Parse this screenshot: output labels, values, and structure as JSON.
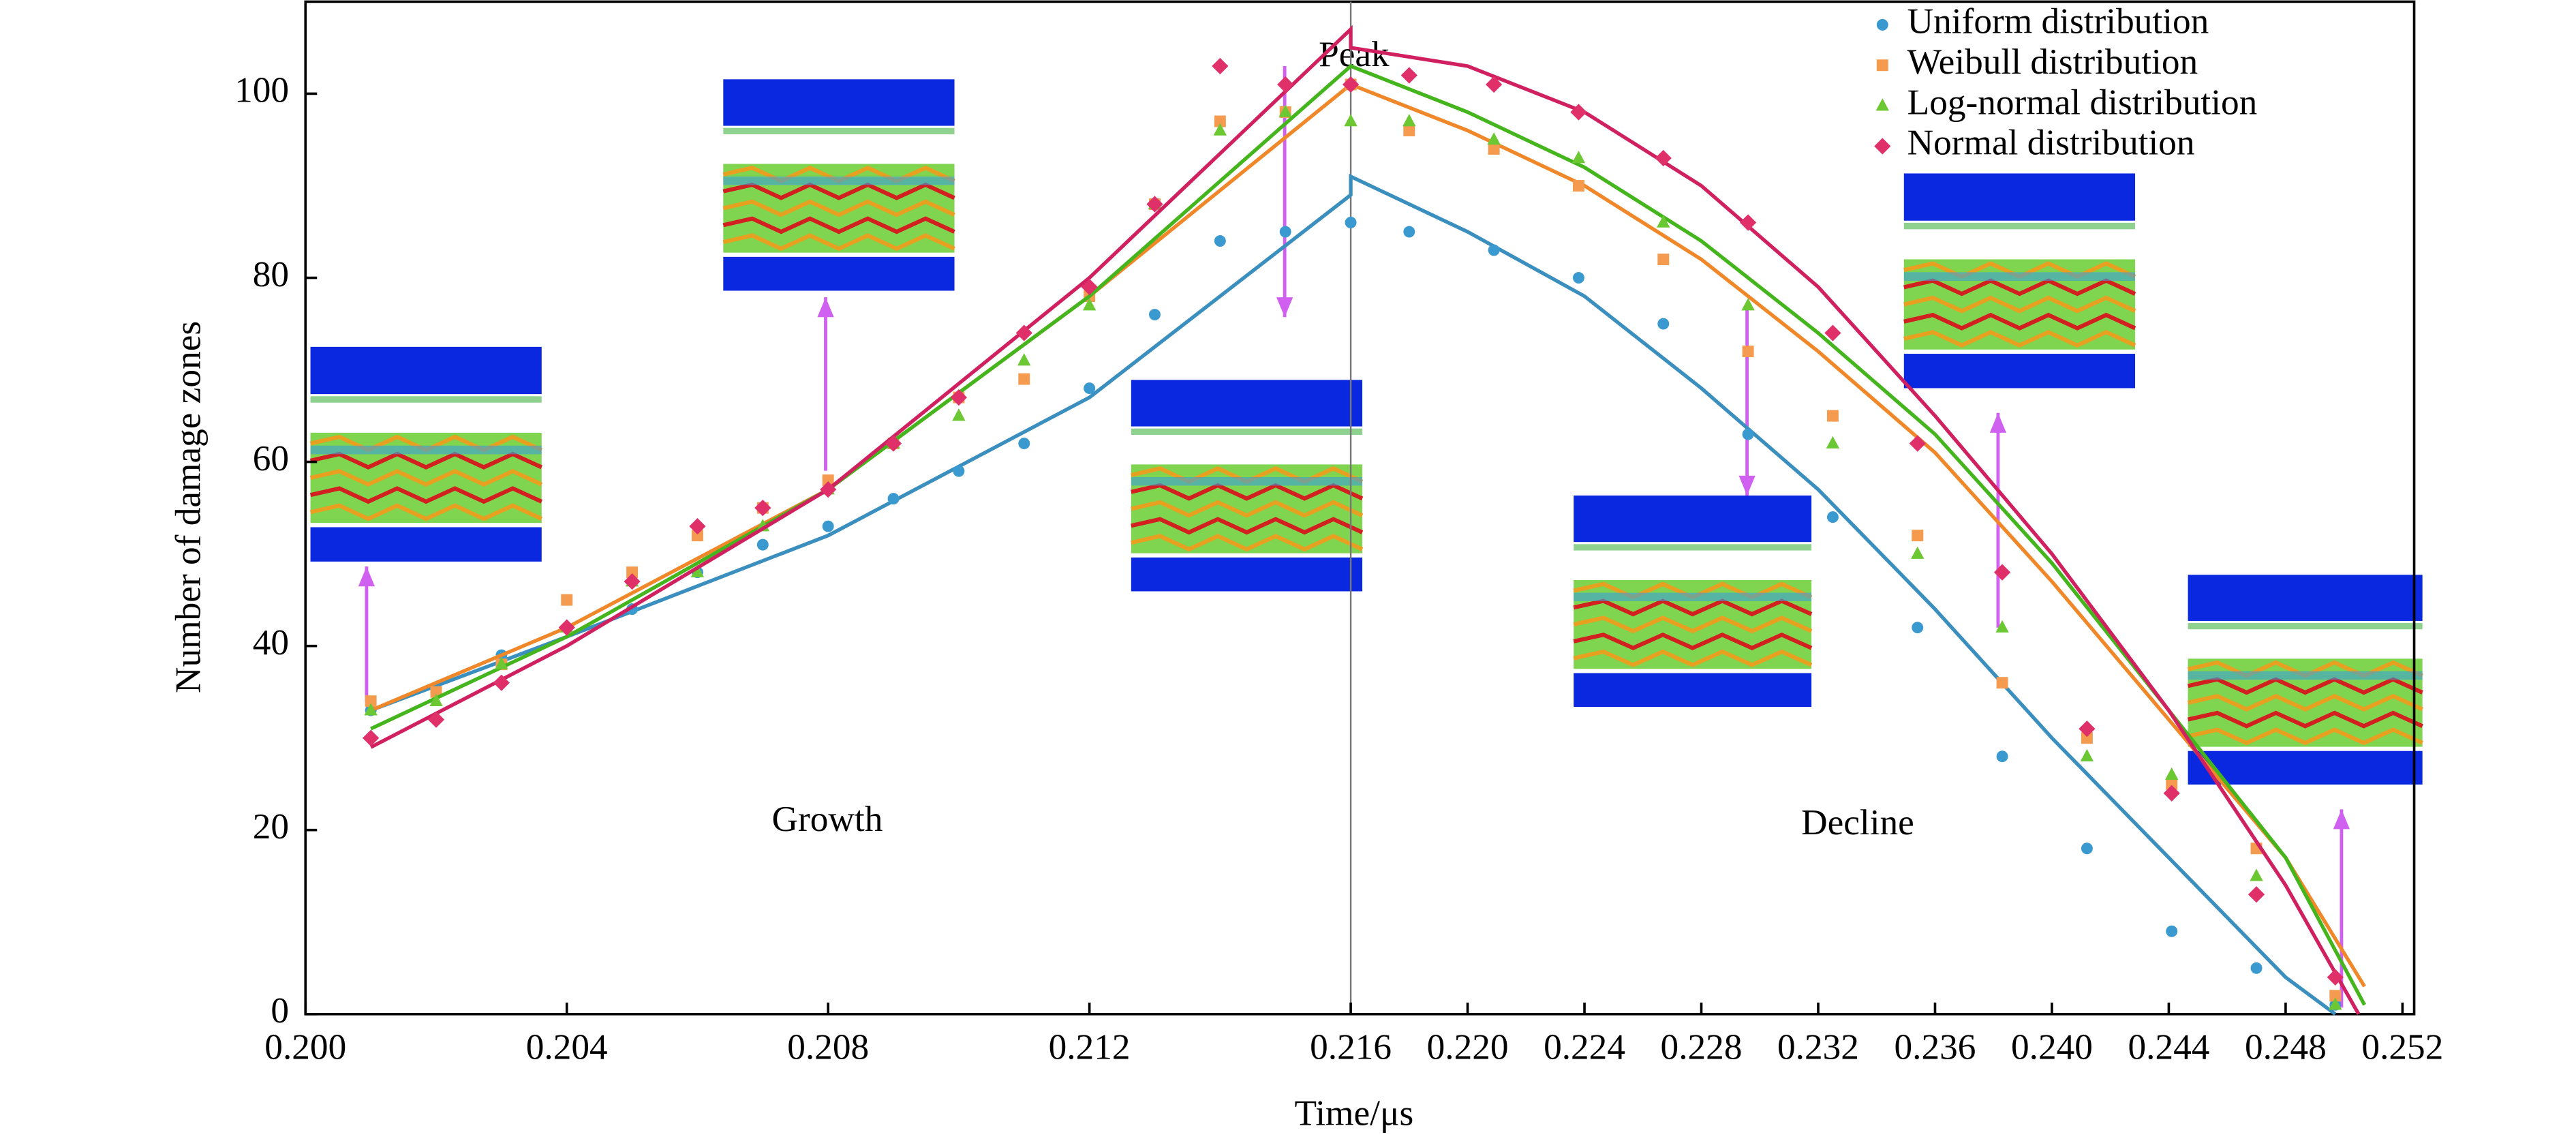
{
  "chart_data": {
    "type": "scatter",
    "xlabel": "Time/μs",
    "ylabel": "Number of damage zones",
    "xlim": [
      0.2,
      0.2524
    ],
    "ylim": [
      0,
      110
    ],
    "xticks": [
      {
        "value": 0.2,
        "label": "0.200"
      },
      0.204,
      0.208,
      0.212,
      0.216,
      {
        "value": 0.22,
        "label": "0.220"
      },
      0.224,
      0.228,
      0.232,
      0.236,
      {
        "value": 0.24,
        "label": "0.240"
      },
      0.244,
      0.248,
      0.252
    ],
    "yticks": [
      0,
      20,
      40,
      60,
      80,
      100
    ],
    "vline": 0.216,
    "legend": "upper right",
    "annotations": [
      "Growth",
      "Peak",
      "Decline"
    ],
    "x": [
      0.201,
      0.202,
      0.203,
      0.204,
      0.205,
      0.206,
      0.207,
      0.208,
      0.209,
      0.21,
      0.211,
      0.212,
      0.213,
      0.214,
      0.215,
      0.216,
      0.218,
      0.2209,
      0.2238,
      0.2267,
      0.2296,
      0.2325,
      0.2354,
      0.2383,
      0.2412,
      0.2441,
      0.247,
      0.2497
    ],
    "series": [
      {
        "name": "Uniform distribution",
        "color": "#3a9ad0",
        "fit_color": "#3a8fbf",
        "marker": "circle",
        "values": [
          33,
          35,
          39,
          42,
          44,
          48,
          51,
          53,
          56,
          59,
          62,
          68,
          76,
          84,
          85,
          86,
          85,
          83,
          80,
          75,
          63,
          54,
          42,
          28,
          18,
          9,
          5,
          1
        ],
        "fit_x": [
          0.201,
          0.204,
          0.208,
          0.212,
          0.216,
          0.216,
          0.22,
          0.224,
          0.228,
          0.232,
          0.236,
          0.24,
          0.244,
          0.248,
          0.2497
        ],
        "fit": [
          33,
          41,
          52,
          67,
          89,
          91,
          85,
          78,
          68,
          57,
          44,
          30,
          17,
          4,
          0
        ]
      },
      {
        "name": "Weibull distribution",
        "color": "#f59b50",
        "fit_color": "#f0882a",
        "marker": "square",
        "values": [
          34,
          35,
          38,
          45,
          48,
          52,
          55,
          58,
          62,
          67,
          69,
          78,
          88,
          97,
          98,
          101,
          96,
          94,
          90,
          82,
          72,
          65,
          52,
          36,
          30,
          25,
          18,
          2
        ],
        "fit_x": [
          0.201,
          0.204,
          0.208,
          0.212,
          0.216,
          0.216,
          0.22,
          0.224,
          0.228,
          0.232,
          0.236,
          0.24,
          0.244,
          0.248,
          0.2507
        ],
        "fit": [
          33,
          42,
          57,
          78,
          101,
          101,
          96,
          90,
          82,
          72,
          61,
          47,
          32,
          17,
          3
        ]
      },
      {
        "name": "Log-normal distribution",
        "color": "#6cc832",
        "fit_color": "#44b51c",
        "marker": "triangle",
        "values": [
          33,
          34,
          38,
          42,
          47,
          48,
          53,
          57,
          62,
          65,
          71,
          77,
          88,
          96,
          98,
          97,
          97,
          95,
          93,
          86,
          77,
          62,
          50,
          42,
          28,
          26,
          15,
          1
        ],
        "fit_x": [
          0.201,
          0.204,
          0.208,
          0.212,
          0.216,
          0.216,
          0.22,
          0.224,
          0.228,
          0.232,
          0.236,
          0.24,
          0.244,
          0.248,
          0.2507
        ],
        "fit": [
          31,
          41,
          57,
          78,
          103,
          103,
          98,
          92,
          84,
          74,
          63,
          49,
          33,
          17,
          1
        ]
      },
      {
        "name": "Normal distribution",
        "color": "#e0306a",
        "fit_color": "#d02060",
        "marker": "diamond",
        "values": [
          30,
          32,
          36,
          42,
          47,
          53,
          55,
          57,
          62,
          67,
          74,
          79,
          88,
          103,
          101,
          101,
          102,
          101,
          98,
          93,
          86,
          74,
          62,
          48,
          31,
          24,
          13,
          4
        ],
        "fit_x": [
          0.201,
          0.204,
          0.208,
          0.212,
          0.216,
          0.216,
          0.22,
          0.224,
          0.228,
          0.232,
          0.236,
          0.24,
          0.244,
          0.248,
          0.2505
        ],
        "fit": [
          29,
          40,
          57,
          80,
          107,
          105,
          103,
          98,
          90,
          79,
          65,
          50,
          33,
          14,
          0
        ]
      }
    ]
  }
}
